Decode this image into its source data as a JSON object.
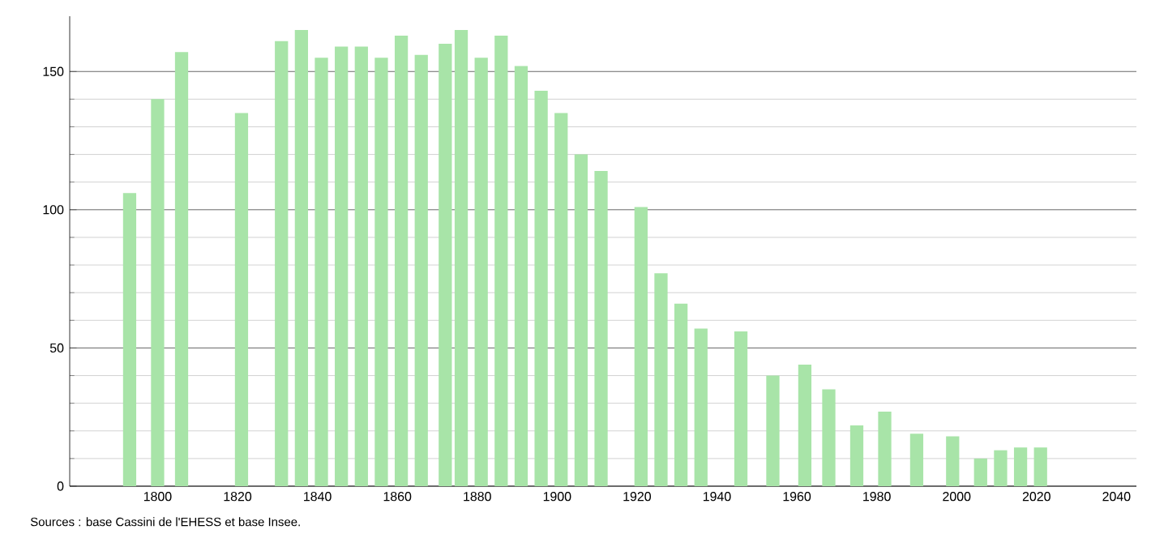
{
  "chart_data": {
    "type": "bar",
    "color": "#a8e4a8",
    "x": [
      1793,
      1800,
      1806,
      1821,
      1831,
      1836,
      1841,
      1846,
      1851,
      1856,
      1861,
      1866,
      1872,
      1876,
      1881,
      1886,
      1891,
      1896,
      1901,
      1906,
      1911,
      1921,
      1926,
      1931,
      1936,
      1946,
      1954,
      1962,
      1968,
      1975,
      1982,
      1990,
      1999,
      2006,
      2011,
      2016,
      2021
    ],
    "values": [
      106,
      140,
      157,
      135,
      161,
      165,
      155,
      159,
      159,
      155,
      163,
      156,
      160,
      165,
      155,
      163,
      152,
      143,
      135,
      120,
      114,
      101,
      77,
      66,
      57,
      56,
      40,
      44,
      35,
      22,
      27,
      19,
      18,
      10,
      13,
      14,
      14
    ],
    "xlim": [
      1778,
      2045
    ],
    "ylim": [
      0,
      170
    ],
    "xticks": [
      1800,
      1820,
      1840,
      1860,
      1880,
      1900,
      1920,
      1940,
      1960,
      1980,
      2000,
      2020,
      2040
    ],
    "yticks": [
      0,
      50,
      100,
      150
    ],
    "grid": "y",
    "annotations": [
      "Sources : base Cassini de l'EHESS et base Insee."
    ]
  }
}
